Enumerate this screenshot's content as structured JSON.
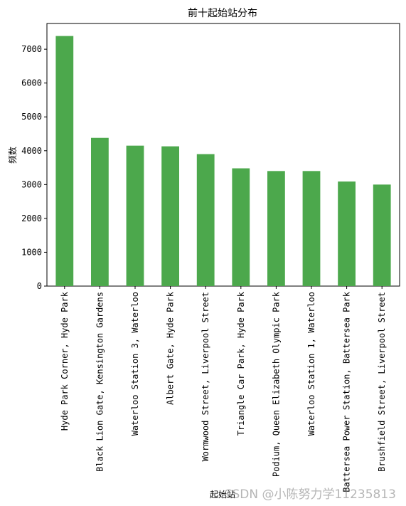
{
  "chart_data": {
    "type": "bar",
    "title": "前十起始站分布",
    "xlabel": "起始站",
    "ylabel": "频数",
    "categories": [
      "Hyde Park Corner, Hyde Park",
      "Black Lion Gate, Kensington Gardens",
      "Waterloo Station 3, Waterloo",
      "Albert Gate, Hyde Park",
      "Wormwood Street, Liverpool Street",
      "Triangle Car Park, Hyde Park",
      "Podium, Queen Elizabeth Olympic Park",
      "Waterloo Station 1, Waterloo",
      "Battersea Power Station, Battersea Park",
      "Brushfield Street, Liverpool Street"
    ],
    "values": [
      7390,
      4380,
      4150,
      4130,
      3900,
      3480,
      3400,
      3400,
      3090,
      3000
    ],
    "ylim": [
      0,
      7760
    ],
    "yticks": [
      0,
      1000,
      2000,
      3000,
      4000,
      5000,
      6000,
      7000
    ],
    "grid": false,
    "bar_color": "#4ca84c"
  },
  "watermark": "CSDN @小陈努力学11235813"
}
